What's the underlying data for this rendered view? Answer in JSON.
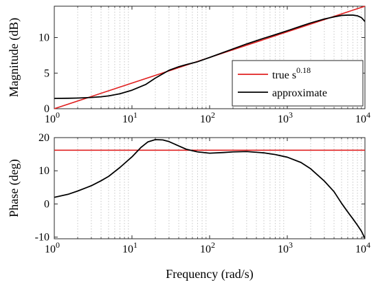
{
  "chart_data": [
    {
      "type": "line",
      "ylabel": "Magnitude (dB)",
      "xscale": "log",
      "xlim": [
        1,
        10000
      ],
      "ylim": [
        0,
        14.4
      ],
      "xticks": [
        1,
        10,
        100,
        1000,
        10000
      ],
      "xtick_labels": [
        {
          "base": "10",
          "exp": "0"
        },
        {
          "base": "10",
          "exp": "1"
        },
        {
          "base": "10",
          "exp": "2"
        },
        {
          "base": "10",
          "exp": "3"
        },
        {
          "base": "10",
          "exp": "4"
        }
      ],
      "yticks": [
        0,
        5,
        10
      ],
      "ytick_labels": [
        "0",
        "5",
        "10"
      ],
      "grid": "dotted, on log minor ticks",
      "legend": {
        "placement": "bottom-right",
        "entries": [
          {
            "text": "true s",
            "sup": "0.18",
            "color": "#e02020"
          },
          {
            "text": "approximate",
            "color": "#000000"
          }
        ]
      },
      "series": [
        {
          "color": "#e02020",
          "x": [
            1,
            10000
          ],
          "y": [
            0,
            14.4
          ]
        },
        {
          "color": "#000000",
          "x": [
            1,
            1.5,
            2,
            3,
            4,
            5,
            7,
            10,
            15,
            20,
            30,
            40,
            50,
            70,
            100,
            150,
            200,
            300,
            500,
            700,
            1000,
            1500,
            2000,
            3000,
            4000,
            5000,
            6000,
            7000,
            8000,
            9000,
            10000
          ],
          "y": [
            1.45,
            1.47,
            1.5,
            1.58,
            1.68,
            1.8,
            2.1,
            2.6,
            3.4,
            4.3,
            5.4,
            5.9,
            6.2,
            6.6,
            7.2,
            7.9,
            8.4,
            9.1,
            9.9,
            10.4,
            10.95,
            11.6,
            12.05,
            12.6,
            12.9,
            13.1,
            13.15,
            13.15,
            13.05,
            12.8,
            12.25
          ]
        }
      ]
    },
    {
      "type": "line",
      "xlabel": "Frequency (rad/s)",
      "ylabel": "Phase (deg)",
      "xscale": "log",
      "xlim": [
        1,
        10000
      ],
      "ylim": [
        -10.5,
        20
      ],
      "xticks": [
        1,
        10,
        100,
        1000,
        10000
      ],
      "xtick_labels": [
        {
          "base": "10",
          "exp": "0"
        },
        {
          "base": "10",
          "exp": "1"
        },
        {
          "base": "10",
          "exp": "2"
        },
        {
          "base": "10",
          "exp": "3"
        },
        {
          "base": "10",
          "exp": "4"
        }
      ],
      "yticks": [
        -10,
        0,
        10,
        20
      ],
      "ytick_labels": [
        "-10",
        "0",
        "10",
        "20"
      ],
      "grid": "dotted, on log minor ticks",
      "series": [
        {
          "color": "#e02020",
          "x": [
            1,
            10000
          ],
          "y": [
            16.2,
            16.2
          ]
        },
        {
          "color": "#000000",
          "x": [
            1,
            1.5,
            2,
            3,
            4,
            5,
            7,
            10,
            13,
            16,
            20,
            25,
            30,
            40,
            50,
            70,
            100,
            150,
            200,
            300,
            500,
            700,
            1000,
            1500,
            2000,
            3000,
            4000,
            5000,
            6000,
            7000,
            8000,
            9000,
            10000
          ],
          "y": [
            2,
            2.9,
            3.9,
            5.5,
            7,
            8.3,
            11,
            14.2,
            17,
            18.7,
            19.4,
            19.3,
            18.8,
            17.5,
            16.5,
            15.7,
            15.3,
            15.5,
            15.7,
            15.8,
            15.4,
            14.9,
            14.1,
            12.5,
            10.6,
            6.9,
            3.7,
            0.2,
            -2.4,
            -4.5,
            -6.4,
            -8.2,
            -10.4
          ]
        }
      ]
    }
  ]
}
